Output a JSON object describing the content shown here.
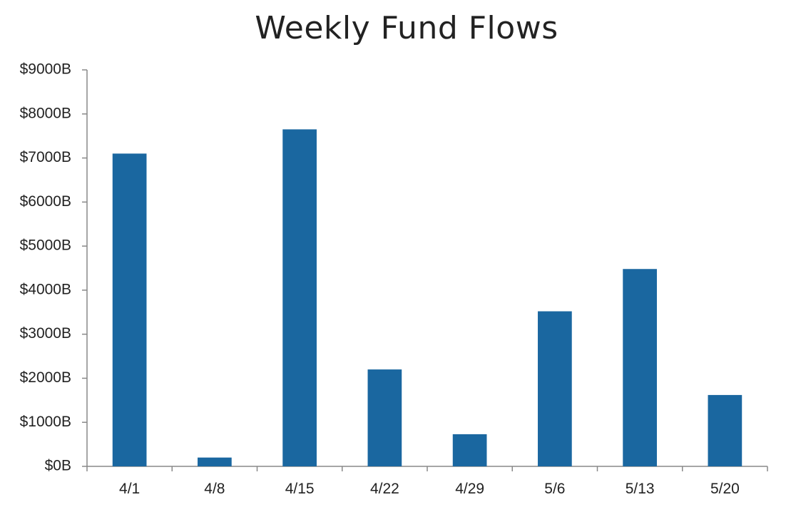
{
  "chart_data": {
    "type": "bar",
    "title": "Weekly Fund Flows",
    "xlabel": "",
    "ylabel": "",
    "categories": [
      "4/1",
      "4/8",
      "4/15",
      "4/22",
      "4/29",
      "5/6",
      "5/13",
      "5/20"
    ],
    "values": [
      7100,
      200,
      7650,
      2200,
      730,
      3520,
      4480,
      1620
    ],
    "ylim": [
      0,
      9000
    ],
    "yticks": [
      0,
      1000,
      2000,
      3000,
      4000,
      5000,
      6000,
      7000,
      8000,
      9000
    ],
    "ytick_labels": [
      "$0B",
      "$1000B",
      "$2000B",
      "$3000B",
      "$4000B",
      "$5000B",
      "$6000B",
      "$7000B",
      "$8000B",
      "$9000B"
    ],
    "grid": false,
    "legend": "none",
    "colors": {
      "bar": "#1a67a0",
      "axis": "#888888",
      "text": "#222222"
    }
  }
}
